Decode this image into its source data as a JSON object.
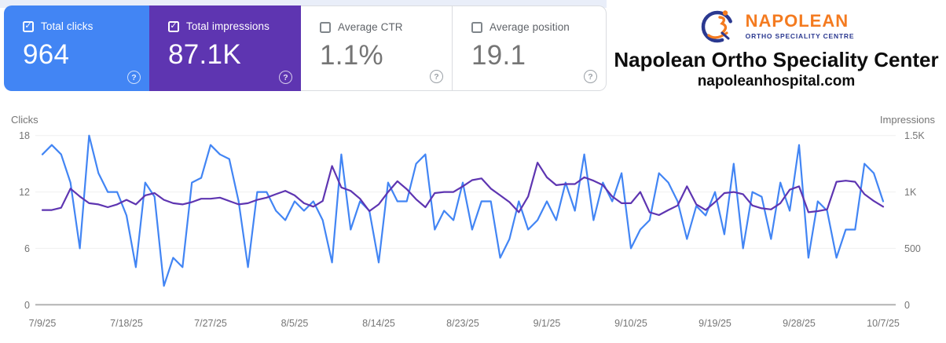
{
  "cards": [
    {
      "label": "Total clicks",
      "value": "964",
      "checked": true,
      "color": "#4285f4"
    },
    {
      "label": "Total impressions",
      "value": "87.1K",
      "checked": true,
      "color": "#5e35b1"
    },
    {
      "label": "Average CTR",
      "value": "1.1%",
      "checked": false,
      "color": "#ffffff"
    },
    {
      "label": "Average position",
      "value": "19.1",
      "checked": false,
      "color": "#ffffff"
    }
  ],
  "help_icon_glyph": "?",
  "brand": {
    "logo_name": "NAPOLEAN",
    "logo_subtext": "ORTHO SPECIALITY CENTRE",
    "title": "Napolean Ortho Speciality Center",
    "domain": "napoleanhospital.com",
    "logo_orange": "#f47b20",
    "logo_navy": "#2b3990"
  },
  "chart_data": {
    "type": "line",
    "x_axis_label": "",
    "x_tick_labels": [
      "7/9/25",
      "7/18/25",
      "7/27/25",
      "8/5/25",
      "8/14/25",
      "8/23/25",
      "9/1/25",
      "9/10/25",
      "9/19/25",
      "9/28/25",
      "10/7/25"
    ],
    "x_tick_indices": [
      0,
      9,
      18,
      27,
      36,
      45,
      54,
      63,
      72,
      81,
      90
    ],
    "dates": [
      "7/9",
      "7/10",
      "7/11",
      "7/12",
      "7/13",
      "7/14",
      "7/15",
      "7/16",
      "7/17",
      "7/18",
      "7/19",
      "7/20",
      "7/21",
      "7/22",
      "7/23",
      "7/24",
      "7/25",
      "7/26",
      "7/27",
      "7/28",
      "7/29",
      "7/30",
      "7/31",
      "8/1",
      "8/2",
      "8/3",
      "8/4",
      "8/5",
      "8/6",
      "8/7",
      "8/8",
      "8/9",
      "8/10",
      "8/11",
      "8/12",
      "8/13",
      "8/14",
      "8/15",
      "8/16",
      "8/17",
      "8/18",
      "8/19",
      "8/20",
      "8/21",
      "8/22",
      "8/23",
      "8/24",
      "8/25",
      "8/26",
      "8/27",
      "8/28",
      "8/29",
      "8/30",
      "8/31",
      "9/1",
      "9/2",
      "9/3",
      "9/4",
      "9/5",
      "9/6",
      "9/7",
      "9/8",
      "9/9",
      "9/10",
      "9/11",
      "9/12",
      "9/13",
      "9/14",
      "9/15",
      "9/16",
      "9/17",
      "9/18",
      "9/19",
      "9/20",
      "9/21",
      "9/22",
      "9/23",
      "9/24",
      "9/25",
      "9/26",
      "9/27",
      "9/28",
      "9/29",
      "9/30",
      "10/1",
      "10/2",
      "10/3",
      "10/4",
      "10/5",
      "10/6",
      "10/7"
    ],
    "y_left": {
      "label": "Clicks",
      "ticks": [
        "18",
        "12",
        "6",
        "0"
      ],
      "tick_values": [
        18,
        12,
        6,
        0
      ],
      "max": 18
    },
    "y_right": {
      "label": "Impressions",
      "ticks": [
        "1.5K",
        "1K",
        "500",
        "0"
      ],
      "tick_values": [
        1500,
        1000,
        500,
        0
      ],
      "max": 1500
    },
    "grid": true,
    "legend_position": "none",
    "series": [
      {
        "name": "Clicks",
        "axis": "left",
        "color": "#4285f4",
        "values": [
          16,
          17,
          16,
          13,
          6,
          18,
          14,
          12,
          12,
          9.5,
          4,
          13,
          11.5,
          2,
          5,
          4,
          13,
          13.5,
          17,
          16,
          15.5,
          11,
          4,
          12,
          12,
          10,
          9,
          11,
          10,
          11,
          9,
          4.5,
          16,
          8,
          11,
          10,
          4.5,
          13,
          11,
          11,
          15,
          16,
          8,
          10,
          9,
          13,
          8,
          11,
          11,
          5,
          7,
          11,
          8,
          9,
          11,
          9,
          13,
          10,
          16,
          9,
          13,
          11,
          14,
          6,
          8,
          9,
          14,
          13,
          11,
          7,
          10.5,
          9.5,
          12,
          7.5,
          15,
          6,
          12,
          11.5,
          7,
          13,
          10,
          17,
          5,
          11,
          10,
          5,
          8,
          8,
          15,
          14,
          11
        ]
      },
      {
        "name": "Impressions",
        "axis": "right",
        "color": "#5e35b1",
        "values": [
          840,
          840,
          860,
          1030,
          960,
          900,
          890,
          865,
          890,
          930,
          890,
          970,
          990,
          930,
          900,
          890,
          910,
          940,
          940,
          950,
          920,
          890,
          900,
          930,
          950,
          980,
          1010,
          970,
          900,
          870,
          920,
          1230,
          1040,
          1010,
          940,
          830,
          890,
          1000,
          1095,
          1025,
          935,
          865,
          990,
          1000,
          1000,
          1050,
          1105,
          1120,
          1030,
          970,
          910,
          820,
          960,
          1260,
          1130,
          1060,
          1070,
          1070,
          1130,
          1100,
          1060,
          960,
          900,
          900,
          1000,
          820,
          795,
          840,
          880,
          1050,
          890,
          840,
          910,
          990,
          1000,
          980,
          880,
          855,
          845,
          900,
          1020,
          1050,
          820,
          830,
          845,
          1090,
          1100,
          1090,
          980,
          920,
          870
        ]
      }
    ]
  }
}
